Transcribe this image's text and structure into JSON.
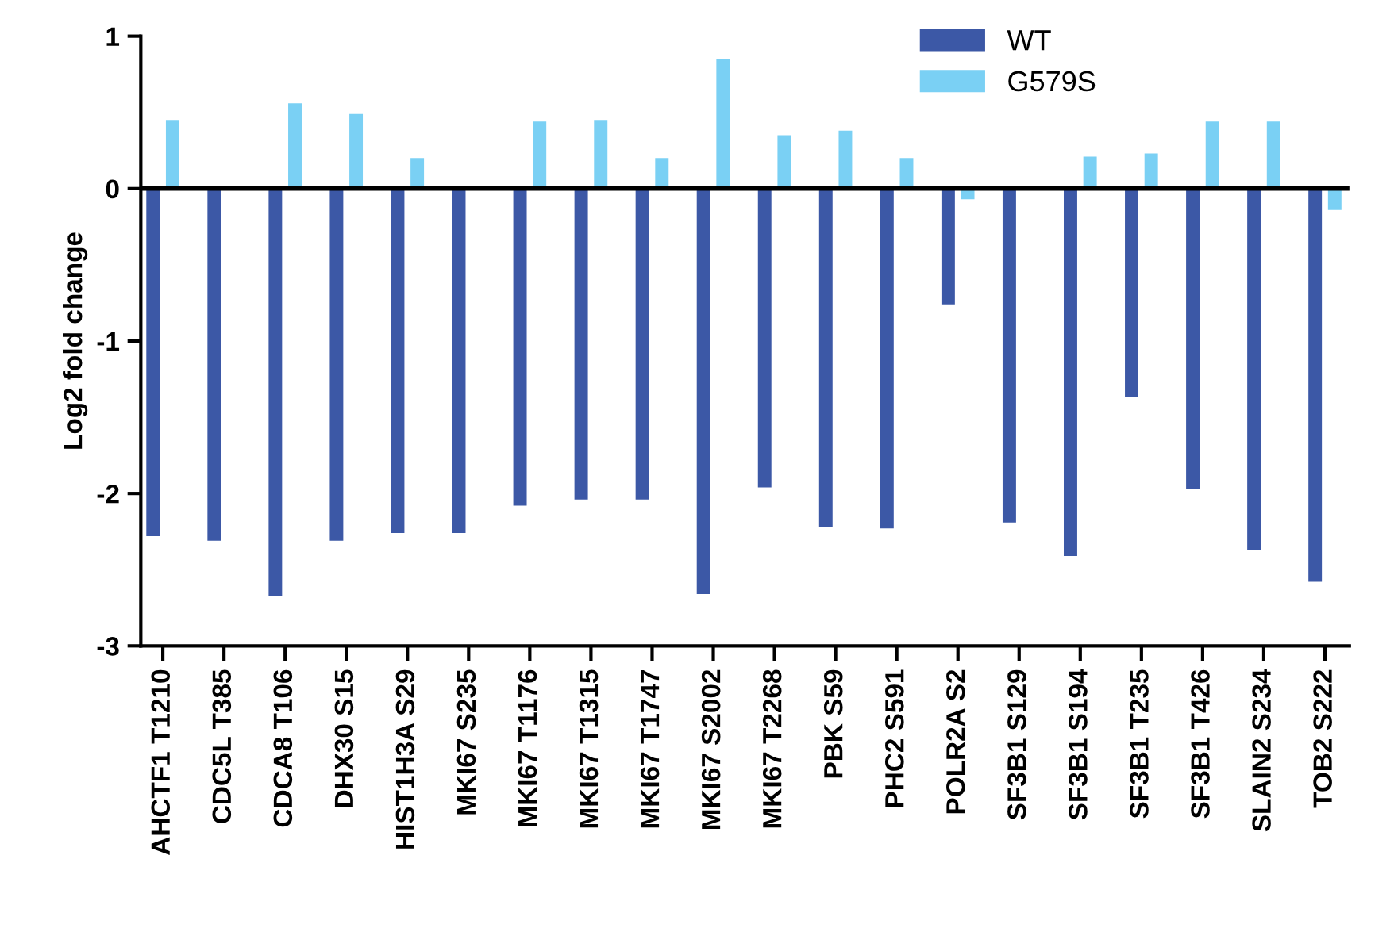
{
  "chart_data": {
    "type": "bar",
    "ylabel": "Log2 fold change",
    "categories": [
      "AHCTF1 T1210",
      "CDC5L T385",
      "CDCA8 T106",
      "DHX30 S15",
      "HIST1H3A S29",
      "MKI67 S235",
      "MKI67 T1176",
      "MKI67 T1315",
      "MKI67 T1747",
      "MKI67 S2002",
      "MKI67 T2268",
      "PBK S59",
      "PHC2 S591",
      "POLR2A S2",
      "SF3B1 S129",
      "SF3B1 S194",
      "SF3B1 T235",
      "SF3B1 T426",
      "SLAIN2 S234",
      "TOB2 S222"
    ],
    "series": [
      {
        "name": "WT",
        "color": "#3c58a6",
        "values": [
          -2.28,
          -2.31,
          -2.67,
          -2.31,
          -2.26,
          -2.26,
          -2.08,
          -2.04,
          -2.04,
          -2.66,
          -1.96,
          -2.22,
          -2.23,
          -0.76,
          -2.19,
          -2.41,
          -1.37,
          -1.97,
          -2.37,
          -2.58
        ]
      },
      {
        "name": "G579S",
        "color": "#7ad0f4",
        "values": [
          0.45,
          null,
          0.56,
          0.49,
          0.2,
          null,
          0.44,
          0.45,
          0.2,
          0.85,
          0.35,
          0.38,
          0.2,
          -0.07,
          null,
          0.21,
          0.23,
          0.44,
          0.44,
          -0.14
        ]
      }
    ],
    "ylim": [
      -3,
      1
    ],
    "yticks": [
      -3,
      -2,
      -1,
      0,
      1
    ],
    "ref_lines": [
      {
        "axis": "y",
        "value": 0,
        "color": "#000000"
      }
    ],
    "grid": false,
    "legend": "top right"
  }
}
